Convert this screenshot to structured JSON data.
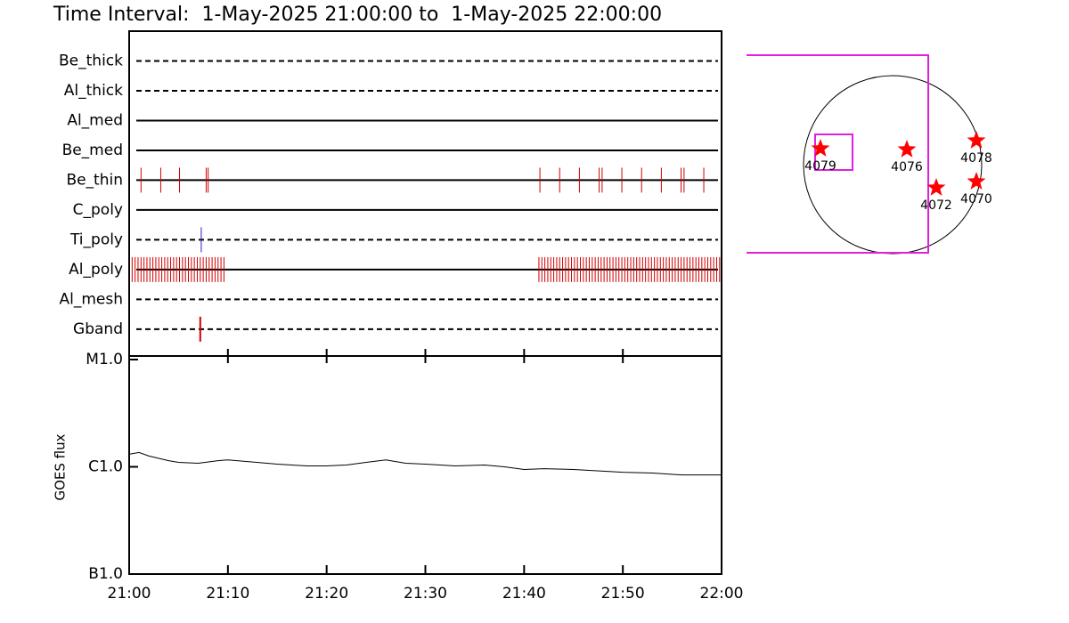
{
  "title": "Time Interval:  1-May-2025 21:00:00 to  1-May-2025 22:00:00",
  "chart_data": [
    {
      "type": "timeline",
      "xlim": [
        0,
        60
      ],
      "filters": [
        {
          "name": "Be_thick",
          "style": "dashed",
          "color": "#d00000",
          "events": []
        },
        {
          "name": "Al_thick",
          "style": "dashed",
          "color": "#d00000",
          "events": []
        },
        {
          "name": "Al_med",
          "style": "solid",
          "color": "#d00000",
          "events": []
        },
        {
          "name": "Be_med",
          "style": "solid",
          "color": "#d00000",
          "events": []
        },
        {
          "name": "Be_thin",
          "style": "solid",
          "color": "#d00000",
          "events": [
            1.2,
            3.2,
            5.1,
            7.8,
            8.0,
            41.6,
            43.6,
            45.6,
            47.6,
            47.9,
            49.9,
            51.9,
            53.9,
            55.9,
            56.2,
            58.2
          ]
        },
        {
          "name": "C_poly",
          "style": "solid",
          "color": "#d00000",
          "events": []
        },
        {
          "name": "Ti_poly",
          "style": "dashed",
          "color": "#2020c0",
          "events": [
            7.3
          ]
        },
        {
          "name": "Al_poly",
          "style": "solid",
          "color": "#d00000",
          "events": [
            0.3,
            0.6,
            0.9,
            1.2,
            1.5,
            1.8,
            2.1,
            2.4,
            2.7,
            3.0,
            3.3,
            3.6,
            3.9,
            4.2,
            4.5,
            4.8,
            5.1,
            5.4,
            5.7,
            6.0,
            6.3,
            6.6,
            6.9,
            7.2,
            7.5,
            7.8,
            8.1,
            8.4,
            8.7,
            9.0,
            9.3,
            9.6,
            41.5,
            41.8,
            42.1,
            42.4,
            42.7,
            43.0,
            43.3,
            43.6,
            43.9,
            44.2,
            44.5,
            44.8,
            45.1,
            45.4,
            45.7,
            46.0,
            46.3,
            46.6,
            46.9,
            47.2,
            47.5,
            47.8,
            48.1,
            48.4,
            48.7,
            49.0,
            49.3,
            49.6,
            49.9,
            50.2,
            50.5,
            50.8,
            51.1,
            51.4,
            51.7,
            52.0,
            52.3,
            52.6,
            52.9,
            53.2,
            53.5,
            53.8,
            54.1,
            54.4,
            54.7,
            55.0,
            55.3,
            55.6,
            55.9,
            56.2,
            56.5,
            56.8,
            57.1,
            57.4,
            57.7,
            58.0,
            58.3,
            58.6,
            58.9,
            59.2,
            59.5,
            59.8
          ]
        },
        {
          "name": "Al_mesh",
          "style": "dashed",
          "color": "#d00000",
          "events": []
        },
        {
          "name": "Gband",
          "style": "dashed",
          "color": "#d00000",
          "events": [
            7.2
          ]
        }
      ]
    },
    {
      "type": "line",
      "ylabel": "GOES flux",
      "color": "#000000",
      "log_scale": true,
      "x": [
        0,
        1,
        2,
        4,
        5,
        7,
        9,
        10,
        12,
        15,
        18,
        20,
        22,
        24,
        26,
        28,
        30,
        33,
        36,
        38,
        40,
        42,
        45,
        48,
        50,
        53,
        56,
        60
      ],
      "values": [
        1.31e-06,
        1.36e-06,
        1.26e-06,
        1.14e-06,
        1.1e-06,
        1.08e-06,
        1.14e-06,
        1.16e-06,
        1.12e-06,
        1.06e-06,
        1.02e-06,
        1.02e-06,
        1.04e-06,
        1.1e-06,
        1.16e-06,
        1.08e-06,
        1.06e-06,
        1.02e-06,
        1.04e-06,
        1e-06,
        9.45e-07,
        9.6e-07,
        9.45e-07,
        9.1e-07,
        8.9e-07,
        8.75e-07,
        8.4e-07,
        8.4e-07
      ],
      "xlim": [
        0,
        60
      ],
      "xticks": [
        {
          "value": 0,
          "label": "21:00"
        },
        {
          "value": 10,
          "label": "21:10"
        },
        {
          "value": 20,
          "label": "21:20"
        },
        {
          "value": 30,
          "label": "21:30"
        },
        {
          "value": 40,
          "label": "21:40"
        },
        {
          "value": 50,
          "label": "21:50"
        },
        {
          "value": 60,
          "label": "22:00"
        }
      ],
      "ylim": [
        1e-07,
        1e-05
      ],
      "yticks": [
        {
          "value": 1e-07,
          "label": "B1.0"
        },
        {
          "value": 1e-06,
          "label": "C1.0"
        },
        {
          "value": 1e-05,
          "label": "M1.0"
        }
      ]
    }
  ],
  "map": {
    "regions": [
      {
        "label": "4079"
      },
      {
        "label": "4076"
      },
      {
        "label": "4078"
      },
      {
        "label": "4072"
      },
      {
        "label": "4070"
      }
    ]
  }
}
